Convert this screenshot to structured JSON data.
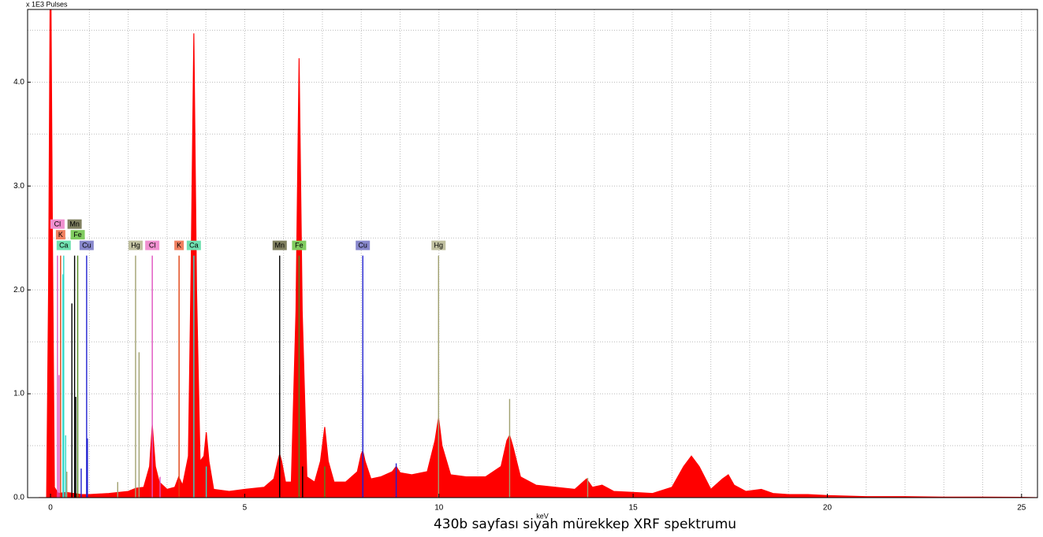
{
  "chart_data": {
    "type": "area",
    "title": "430b sayfası siyah mürekkep XRF spektrumu",
    "y_label": "x 1E3 Pulses",
    "x_label": "keV",
    "color": "#ff0000",
    "xlim": [
      -0.59,
      25.41
    ],
    "ylim": [
      0,
      4.7
    ],
    "xticks": [
      0,
      5,
      10,
      15,
      20,
      25
    ],
    "yticks": [
      {
        "value": 0,
        "label": "0.0"
      },
      {
        "value": 1,
        "label": "1.0"
      },
      {
        "value": 2,
        "label": "2.0"
      },
      {
        "value": 3,
        "label": "3.0"
      },
      {
        "value": 4,
        "label": "4.0"
      }
    ],
    "grid": true,
    "grid_x": [
      0,
      1,
      2,
      3,
      4,
      5,
      6,
      7,
      8,
      9,
      10,
      11,
      12,
      13,
      14,
      15,
      16,
      17,
      18,
      19,
      20,
      21,
      22,
      23,
      24,
      25
    ],
    "grid_y": [
      0.5,
      1,
      1.5,
      2,
      2.5,
      3,
      3.5,
      4,
      4.5
    ],
    "x": [
      -0.3,
      -0.1,
      -0.05,
      0,
      0.05,
      0.1,
      0.2,
      0.4,
      0.6,
      0.8,
      1.0,
      1.5,
      2.0,
      2.2,
      2.4,
      2.55,
      2.62,
      2.7,
      2.8,
      3.0,
      3.2,
      3.3,
      3.4,
      3.55,
      3.62,
      3.69,
      3.76,
      3.85,
      3.95,
      4.01,
      4.08,
      4.2,
      4.6,
      5.0,
      5.5,
      5.75,
      5.85,
      5.9,
      5.95,
      6.05,
      6.2,
      6.32,
      6.4,
      6.48,
      6.6,
      6.8,
      6.95,
      7.06,
      7.15,
      7.3,
      7.6,
      7.9,
      8.0,
      8.04,
      8.1,
      8.25,
      8.5,
      8.8,
      8.9,
      9.0,
      9.3,
      9.7,
      9.9,
      9.99,
      10.08,
      10.3,
      10.7,
      11.2,
      11.6,
      11.75,
      11.82,
      11.9,
      12.1,
      12.5,
      13.0,
      13.5,
      13.8,
      13.95,
      14.2,
      14.5,
      15.0,
      15.5,
      16.0,
      16.3,
      16.5,
      16.7,
      17.0,
      17.3,
      17.45,
      17.6,
      17.9,
      18.3,
      18.6,
      19.0,
      19.5,
      20.0,
      21.0,
      22.0,
      23.0,
      24.0,
      25.0,
      25.4
    ],
    "values": [
      0,
      0,
      2.0,
      5.5,
      2.5,
      0.1,
      0.04,
      0.05,
      0.04,
      0.03,
      0.03,
      0.04,
      0.06,
      0.09,
      0.1,
      0.3,
      0.7,
      0.3,
      0.15,
      0.08,
      0.1,
      0.2,
      0.12,
      0.4,
      2.2,
      4.47,
      2.0,
      0.35,
      0.4,
      0.63,
      0.35,
      0.08,
      0.06,
      0.08,
      0.1,
      0.18,
      0.35,
      0.42,
      0.35,
      0.15,
      0.15,
      1.8,
      4.23,
      1.8,
      0.2,
      0.15,
      0.35,
      0.68,
      0.35,
      0.15,
      0.15,
      0.25,
      0.42,
      0.45,
      0.35,
      0.18,
      0.2,
      0.25,
      0.3,
      0.24,
      0.22,
      0.25,
      0.55,
      0.77,
      0.5,
      0.22,
      0.2,
      0.2,
      0.3,
      0.55,
      0.6,
      0.5,
      0.2,
      0.12,
      0.1,
      0.08,
      0.18,
      0.1,
      0.12,
      0.06,
      0.05,
      0.04,
      0.1,
      0.3,
      0.4,
      0.3,
      0.08,
      0.18,
      0.22,
      0.12,
      0.06,
      0.08,
      0.04,
      0.03,
      0.03,
      0.02,
      0.01,
      0.01,
      0.005,
      0.005,
      0.003,
      0
    ],
    "markers": [
      {
        "label": "Ca",
        "x": 0.34,
        "y": 2.33,
        "color": "#30d8c8",
        "box": "#70e0b0"
      },
      {
        "label": "Fe",
        "x": 0.7,
        "y": 2.33,
        "color": "#508a20",
        "box": "#80cc60"
      },
      {
        "label": "K",
        "x": 0.26,
        "y": 2.33,
        "color": "#e04010",
        "box": "#f08060"
      },
      {
        "label": "Cu",
        "x": 0.93,
        "y": 2.33,
        "color": "#2020d0",
        "box": "#8888cc"
      },
      {
        "label": "Cl",
        "x": 0.18,
        "y": 2.33,
        "color": "#e050c0",
        "box": "#f090d0"
      },
      {
        "label": "Mn",
        "x": 0.62,
        "y": 2.33,
        "color": "#000000",
        "box": "#808060"
      },
      {
        "label": "Hg",
        "x": 2.19,
        "y": 2.33,
        "color": "#a0a070",
        "box": "#c0c0a0"
      },
      {
        "label": "Cl",
        "x": 2.62,
        "y": 2.33,
        "color": "#e050c0",
        "box": "#f090d0"
      },
      {
        "label": "K",
        "x": 3.31,
        "y": 2.33,
        "color": "#e04010",
        "box": "#f08060"
      },
      {
        "label": "Ca",
        "x": 3.69,
        "y": 2.33,
        "color": "#30d8c8",
        "box": "#70e0b0"
      },
      {
        "label": "Mn",
        "x": 5.9,
        "y": 2.33,
        "color": "#000000",
        "box": "#808060"
      },
      {
        "label": "Fe",
        "x": 6.4,
        "y": 2.33,
        "color": "#508a20",
        "box": "#80cc60"
      },
      {
        "label": "Cu",
        "x": 8.04,
        "y": 2.33,
        "color": "#2020d0",
        "box": "#8888cc"
      },
      {
        "label": "Hg",
        "x": 9.99,
        "y": 2.33,
        "color": "#a0a070",
        "box": "#c0c0a0"
      }
    ],
    "lines": [
      {
        "x": 0.22,
        "y": 1.18,
        "color": "#e050c0"
      },
      {
        "x": 0.32,
        "y": 2.15,
        "color": "#30d8c8"
      },
      {
        "x": 0.39,
        "y": 0.6,
        "color": "#30d8c8"
      },
      {
        "x": 0.42,
        "y": 0.25,
        "color": "#a0a070"
      },
      {
        "x": 0.55,
        "y": 1.87,
        "color": "#000000"
      },
      {
        "x": 0.65,
        "y": 0.97,
        "color": "#000000"
      },
      {
        "x": 0.79,
        "y": 0.28,
        "color": "#2020d0"
      },
      {
        "x": 0.95,
        "y": 0.57,
        "color": "#2020d0"
      },
      {
        "x": 1.73,
        "y": 0.15,
        "color": "#a0a070"
      },
      {
        "x": 2.28,
        "y": 1.4,
        "color": "#a0a070"
      },
      {
        "x": 2.82,
        "y": 0.2,
        "color": "#e050c0"
      },
      {
        "x": 4.01,
        "y": 0.3,
        "color": "#30d8c8"
      },
      {
        "x": 5.9,
        "y": 1.18,
        "color": "#000000"
      },
      {
        "x": 6.49,
        "y": 0.3,
        "color": "#000000"
      },
      {
        "x": 7.06,
        "y": 0.3,
        "color": "#508a20"
      },
      {
        "x": 8.04,
        "y": 1.18,
        "color": "#2020d0"
      },
      {
        "x": 8.9,
        "y": 0.33,
        "color": "#2020d0"
      },
      {
        "x": 11.82,
        "y": 0.95,
        "color": "#a0a070"
      },
      {
        "x": 13.83,
        "y": 0.19,
        "color": "#a0a070"
      }
    ]
  }
}
